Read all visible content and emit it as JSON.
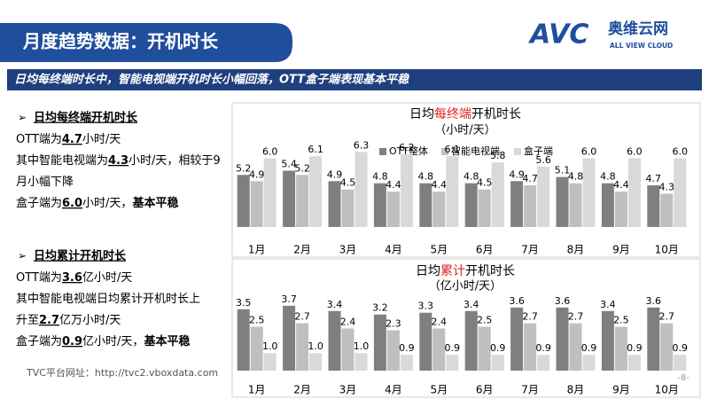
{
  "header": {
    "title": "月度趋势数据：开机时长",
    "logo": "AVC",
    "logo_cn": "奥维云网",
    "logo_en": "ALL VIEW CLOUD"
  },
  "banner": "日均每终端时长中，智能电视端开机时长小幅回落，OTT盒子端表现基本平稳",
  "left_text": [
    {
      "heading": "日均每终端开机时长",
      "lines": [
        [
          {
            "text": "OTT端为"
          },
          {
            "text": "4.7",
            "bold": true,
            "underline": true
          },
          {
            "text": "小时/天"
          }
        ],
        [
          {
            "text": "其中智能电视端为"
          },
          {
            "text": "4.3",
            "bold": true,
            "underline": true
          },
          {
            "text": "小时/天，相较于9"
          }
        ],
        [
          {
            "text": "月小幅下降"
          }
        ],
        [
          {
            "text": "盒子端为"
          },
          {
            "text": "6.0",
            "bold": true,
            "underline": true
          },
          {
            "text": "小时/天，"
          },
          {
            "text": "基本平稳",
            "bold": true
          }
        ]
      ]
    },
    {
      "heading": "日均累计开机时长",
      "lines": [
        [
          {
            "text": "OTT端为"
          },
          {
            "text": "3.6",
            "bold": true,
            "underline": true
          },
          {
            "text": "亿小时/天"
          }
        ],
        [
          {
            "text": "其中智能电视端日均累计开机时长上"
          }
        ],
        [
          {
            "text": "升至"
          },
          {
            "text": "2.7",
            "bold": true,
            "underline": true
          },
          {
            "text": "亿万小时/天"
          }
        ],
        [
          {
            "text": "盒子端为"
          },
          {
            "text": "0.9",
            "bold": true,
            "underline": true
          },
          {
            "text": "亿小时/天，"
          },
          {
            "text": "基本平稳",
            "bold": true
          }
        ]
      ]
    }
  ],
  "footer": "TVC平台网址：http://tvc2.vboxdata.com",
  "page_number": "-8-",
  "chart_data": [
    {
      "type": "bar",
      "title": [
        {
          "text": "日均"
        },
        {
          "text": "每终端",
          "color": "#e02020"
        },
        {
          "text": "开机时长"
        }
      ],
      "subtitle": "（小时/天）",
      "legend": true,
      "categories": [
        "1月",
        "2月",
        "3月",
        "4月",
        "5月",
        "6月",
        "7月",
        "8月",
        "9月",
        "10月"
      ],
      "ylim": [
        2.7,
        7.0
      ],
      "series": [
        {
          "name": "OTT整体",
          "color": "#7f7f7f",
          "values": [
            5.2,
            5.4,
            4.9,
            4.8,
            4.8,
            4.8,
            4.9,
            5.1,
            4.8,
            4.7
          ],
          "value_labels": [
            "5.2",
            "5.4",
            "4.9",
            "4.8",
            "4.8",
            "4.8",
            "4.9",
            "5.1",
            "4.8",
            "4.7"
          ]
        },
        {
          "name": "智能电视端",
          "color": "#bfbfbf",
          "values": [
            4.9,
            5.2,
            4.5,
            4.4,
            4.4,
            4.5,
            4.7,
            4.8,
            4.4,
            4.3
          ],
          "value_labels": [
            "4.9",
            "5.2",
            "4.5",
            "4.4",
            "4.4",
            "4.5",
            "4.7",
            "4.8",
            "4.4",
            "4.3"
          ]
        },
        {
          "name": "盒子端",
          "color": "#d9d9d9",
          "values": [
            6.0,
            6.1,
            6.3,
            6.2,
            6.1,
            5.8,
            5.6,
            6.0,
            6.0,
            6.0
          ],
          "value_labels": [
            "6.0",
            "6.1",
            "6.3",
            "6.2",
            "6.1",
            "5.8",
            "5.6",
            "6.0",
            "6.0",
            "6.0"
          ]
        }
      ]
    },
    {
      "type": "bar",
      "title": [
        {
          "text": "日均"
        },
        {
          "text": "累计",
          "color": "#e02020"
        },
        {
          "text": "开机时长"
        }
      ],
      "subtitle": "（亿小时/天）",
      "legend": false,
      "categories": [
        "1月",
        "2月",
        "3月",
        "4月",
        "5月",
        "6月",
        "7月",
        "8月",
        "9月",
        "10月"
      ],
      "ylim": [
        0,
        4.5
      ],
      "series": [
        {
          "color": "#7f7f7f",
          "values": [
            3.5,
            3.7,
            3.4,
            3.2,
            3.3,
            3.4,
            3.6,
            3.6,
            3.4,
            3.6
          ],
          "value_labels": [
            "3.5",
            "3.7",
            "3.4",
            "3.2",
            "3.3",
            "3.4",
            "3.6",
            "3.6",
            "3.4",
            "3.6"
          ]
        },
        {
          "color": "#bfbfbf",
          "values": [
            2.5,
            2.7,
            2.4,
            2.3,
            2.4,
            2.5,
            2.7,
            2.7,
            2.5,
            2.7
          ],
          "value_labels": [
            "2.5",
            "2.7",
            "2.4",
            "2.3",
            "2.4",
            "2.5",
            "2.7",
            "2.7",
            "2.5",
            "2.7"
          ]
        },
        {
          "color": "#d9d9d9",
          "values": [
            1.0,
            1.0,
            1.0,
            0.9,
            0.9,
            0.9,
            0.9,
            0.9,
            0.9,
            0.9
          ],
          "value_labels": [
            "1.0",
            "1.0",
            "1.0",
            "0.9",
            "0.9",
            "0.9",
            "0.9",
            "0.9",
            "0.9",
            "0.9"
          ]
        }
      ]
    }
  ]
}
